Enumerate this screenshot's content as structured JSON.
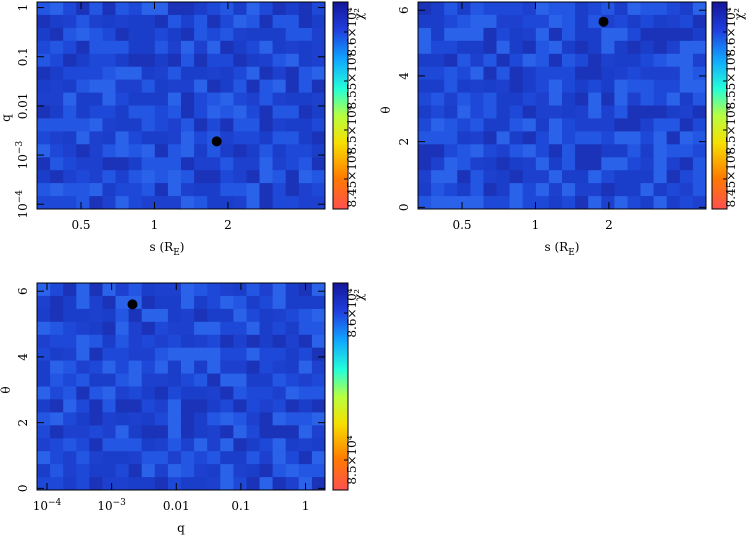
{
  "panels": [
    {
      "type": "heatmap",
      "x_label": "s (R_E)",
      "x_label_main": "s (R",
      "x_label_sub": "E",
      "x_label_close": ")",
      "x_ticks": [
        {
          "v": 0.5,
          "label": "0.5"
        },
        {
          "v": 1,
          "label": "1"
        },
        {
          "v": 2,
          "label": "2"
        }
      ],
      "x_scale": "log",
      "x_range": [
        0.33,
        5.0
      ],
      "y_label": "q",
      "y_scale": "log",
      "y_range": [
        8e-05,
        1.3
      ],
      "y_ticks": [
        {
          "v": 1,
          "label": "1"
        },
        {
          "v": 0.1,
          "label": "0.1"
        },
        {
          "v": 0.01,
          "label": "0.01"
        },
        {
          "v": 0.001,
          "base": "10",
          "exp": "−3"
        },
        {
          "v": 0.0001,
          "base": "10",
          "exp": "−4"
        }
      ],
      "best_fit": {
        "x": 1.8,
        "y": 0.0019
      },
      "colorbar": {
        "label": "χ²",
        "ticks": [
          "8.45×10⁴",
          "8.5×10⁴",
          "8.55×10⁴",
          "8.6×10⁴"
        ]
      }
    },
    {
      "type": "heatmap",
      "x_label": "s (R_E)",
      "x_label_main": "s (R",
      "x_label_sub": "E",
      "x_label_close": ")",
      "x_ticks": [
        {
          "v": 0.5,
          "label": "0.5"
        },
        {
          "v": 1,
          "label": "1"
        },
        {
          "v": 2,
          "label": "2"
        }
      ],
      "x_scale": "log",
      "x_range": [
        0.33,
        5.0
      ],
      "y_label": "θ",
      "y_scale": "linear",
      "y_range": [
        -0.05,
        6.25
      ],
      "y_ticks": [
        {
          "v": 0,
          "label": "0"
        },
        {
          "v": 2,
          "label": "2"
        },
        {
          "v": 4,
          "label": "4"
        },
        {
          "v": 6,
          "label": "6"
        }
      ],
      "best_fit": {
        "x": 1.9,
        "y": 5.65
      },
      "colorbar": {
        "label": "χ²",
        "ticks": [
          "8.45×10⁴",
          "8.5×10⁴",
          "8.55×10⁴",
          "8.6×10⁴"
        ]
      }
    },
    {
      "type": "heatmap",
      "x_label": "q",
      "x_scale": "log",
      "x_range": [
        7e-05,
        2.0
      ],
      "x_ticks": [
        {
          "v": 0.0001,
          "base": "10",
          "exp": "−4"
        },
        {
          "v": 0.001,
          "base": "10",
          "exp": "−3"
        },
        {
          "v": 0.01,
          "label": "0.01"
        },
        {
          "v": 0.1,
          "label": "0.1"
        },
        {
          "v": 1,
          "label": "1"
        }
      ],
      "y_label": "θ",
      "y_scale": "linear",
      "y_range": [
        -0.05,
        6.25
      ],
      "y_ticks": [
        {
          "v": 0,
          "label": "0"
        },
        {
          "v": 2,
          "label": "2"
        },
        {
          "v": 4,
          "label": "4"
        },
        {
          "v": 6,
          "label": "6"
        }
      ],
      "best_fit": {
        "x": 0.0021,
        "y": 5.6
      },
      "colorbar": {
        "label": "χ²",
        "ticks": [
          "8.5×10⁴",
          "8.6×10⁴"
        ]
      }
    }
  ],
  "chart_data": [
    {
      "type": "heatmap",
      "title": "",
      "xlabel": "s (R_E)",
      "ylabel": "q",
      "x_scale": "log",
      "y_scale": "log",
      "xlim": [
        0.33,
        5.0
      ],
      "ylim": [
        8e-05,
        1.3
      ],
      "colorbar_label": "χ²",
      "colorbar_ticks": [
        84500,
        85000,
        85500,
        86000
      ],
      "best_fit": [
        1.8,
        0.0019
      ]
    },
    {
      "type": "heatmap",
      "title": "",
      "xlabel": "s (R_E)",
      "ylabel": "θ",
      "x_scale": "log",
      "y_scale": "linear",
      "xlim": [
        0.33,
        5.0
      ],
      "ylim": [
        -0.05,
        6.25
      ],
      "colorbar_label": "χ²",
      "colorbar_ticks": [
        84500,
        85000,
        85500,
        86000
      ],
      "best_fit": [
        1.9,
        5.65
      ]
    },
    {
      "type": "heatmap",
      "title": "",
      "xlabel": "q",
      "ylabel": "θ",
      "x_scale": "log",
      "y_scale": "linear",
      "xlim": [
        7e-05,
        2.0
      ],
      "ylim": [
        -0.05,
        6.25
      ],
      "colorbar_label": "χ²",
      "colorbar_ticks": [
        85000,
        86000
      ],
      "best_fit": [
        0.0021,
        5.6
      ]
    }
  ]
}
